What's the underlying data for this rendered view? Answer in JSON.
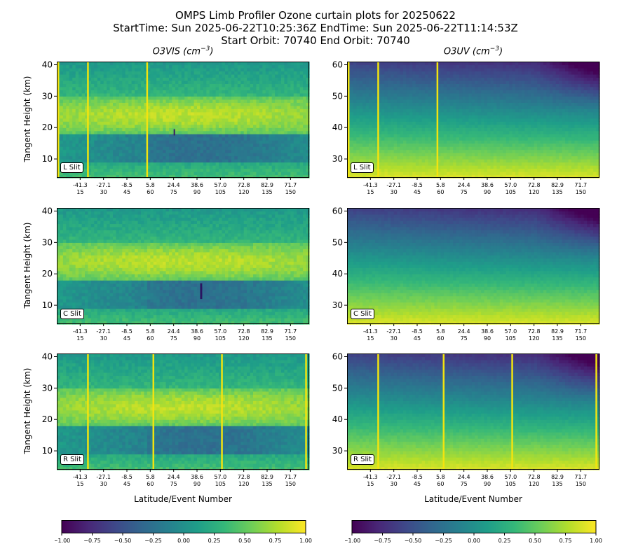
{
  "title": {
    "line1": "OMPS Limb Profiler Ozone curtain plots for 20250622",
    "line2": "StartTime: Sun 2025-06-22T10:25:36Z  EndTime: Sun 2025-06-22T11:14:53Z",
    "line3": "Start Orbit: 70740 End Orbit: 70740"
  },
  "columns": [
    {
      "label_main": "O3VIS (cm",
      "label_sup": "−3",
      "label_close": ")"
    },
    {
      "label_main": "O3UV (cm",
      "label_sup": "−3",
      "label_close": ")"
    }
  ],
  "axis": {
    "ylabel": "Tangent Height (km)",
    "xlabel": "Latitude/Event Number"
  },
  "colors": {
    "viridis": [
      "#440154",
      "#482878",
      "#3e4989",
      "#31688e",
      "#26828e",
      "#1f9e89",
      "#35b779",
      "#6ece58",
      "#b5de2b",
      "#fde725"
    ],
    "slit_line": "#f2e40f"
  },
  "chart_data": [
    {
      "type": "heatmap",
      "product": "O3VIS",
      "slit": "L Slit",
      "ylim": [
        4,
        41
      ],
      "yticks": [
        10,
        20,
        30,
        40
      ],
      "xlim": [
        0,
        162
      ],
      "xtick_events": [
        15,
        30,
        45,
        60,
        75,
        90,
        105,
        120,
        135,
        150
      ],
      "xtick_lats": [
        "-41.3",
        "-27.1",
        "-8.5",
        "5.8",
        "24.4",
        "38.6",
        "57.0",
        "72.8",
        "82.9",
        "71.7"
      ],
      "slit_lines": [
        1,
        20,
        58
      ],
      "colorbar_range": [
        -1.0,
        1.0
      ]
    },
    {
      "type": "heatmap",
      "product": "O3UV",
      "slit": "L Slit",
      "ylim": [
        24,
        61
      ],
      "yticks": [
        30,
        40,
        50,
        60
      ],
      "xlim": [
        0,
        162
      ],
      "xtick_events": [
        15,
        30,
        45,
        60,
        75,
        90,
        105,
        120,
        135,
        150
      ],
      "xtick_lats": [
        "-41.3",
        "-27.1",
        "-8.5",
        "5.8",
        "24.4",
        "38.6",
        "57.0",
        "72.8",
        "82.9",
        "71.7"
      ],
      "slit_lines": [
        1,
        20,
        58
      ],
      "colorbar_range": [
        -1.0,
        1.0
      ]
    },
    {
      "type": "heatmap",
      "product": "O3VIS",
      "slit": "C Slit",
      "ylim": [
        4,
        41
      ],
      "yticks": [
        10,
        20,
        30,
        40
      ],
      "xlim": [
        0,
        162
      ],
      "xtick_events": [
        15,
        30,
        45,
        60,
        75,
        90,
        105,
        120,
        135,
        150
      ],
      "xtick_lats": [
        "-41.3",
        "-27.1",
        "-8.5",
        "5.8",
        "24.4",
        "38.6",
        "57.0",
        "72.8",
        "82.9",
        "71.7"
      ],
      "slit_lines": [],
      "colorbar_range": [
        -1.0,
        1.0
      ]
    },
    {
      "type": "heatmap",
      "product": "O3UV",
      "slit": "C Slit",
      "ylim": [
        24,
        61
      ],
      "yticks": [
        30,
        40,
        50,
        60
      ],
      "xlim": [
        0,
        162
      ],
      "xtick_events": [
        15,
        30,
        45,
        60,
        75,
        90,
        105,
        120,
        135,
        150
      ],
      "xtick_lats": [
        "-41.3",
        "-27.1",
        "-8.5",
        "5.8",
        "24.4",
        "38.6",
        "57.0",
        "72.8",
        "82.9",
        "71.7"
      ],
      "slit_lines": [],
      "colorbar_range": [
        -1.0,
        1.0
      ]
    },
    {
      "type": "heatmap",
      "product": "O3VIS",
      "slit": "R Slit",
      "ylim": [
        4,
        41
      ],
      "yticks": [
        10,
        20,
        30,
        40
      ],
      "xlim": [
        0,
        162
      ],
      "xtick_events": [
        15,
        30,
        45,
        60,
        75,
        90,
        105,
        120,
        135,
        150
      ],
      "xtick_lats": [
        "-41.3",
        "-27.1",
        "-8.5",
        "5.8",
        "24.4",
        "38.6",
        "57.0",
        "72.8",
        "82.9",
        "71.7"
      ],
      "slit_lines": [
        20,
        62,
        106,
        160
      ],
      "colorbar_range": [
        -1.0,
        1.0
      ]
    },
    {
      "type": "heatmap",
      "product": "O3UV",
      "slit": "R Slit",
      "ylim": [
        24,
        61
      ],
      "yticks": [
        30,
        40,
        50,
        60
      ],
      "xlim": [
        0,
        162
      ],
      "xtick_events": [
        15,
        30,
        45,
        60,
        75,
        90,
        105,
        120,
        135,
        150
      ],
      "xtick_lats": [
        "-41.3",
        "-27.1",
        "-8.5",
        "5.8",
        "24.4",
        "38.6",
        "57.0",
        "72.8",
        "82.9",
        "71.7"
      ],
      "slit_lines": [
        20,
        62,
        106,
        160
      ],
      "colorbar_range": [
        -1.0,
        1.0
      ]
    }
  ],
  "colorbar": {
    "ticks": [
      "−1.00",
      "−0.75",
      "−0.50",
      "−0.25",
      "0.00",
      "0.25",
      "0.50",
      "0.75",
      "1.00"
    ]
  }
}
